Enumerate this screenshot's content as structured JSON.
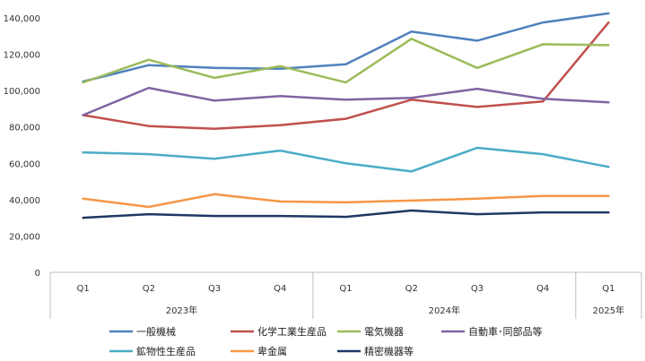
{
  "chart_data": {
    "type": "line",
    "title": "",
    "xlabel": "",
    "ylabel": "",
    "ylim": [
      0,
      140000
    ],
    "yticks": [
      "0",
      "20,000",
      "40,000",
      "60,000",
      "80,000",
      "100,000",
      "120,000",
      "140,000"
    ],
    "ytick_values": [
      0,
      20000,
      40000,
      60000,
      80000,
      100000,
      120000,
      140000
    ],
    "categories": [
      "Q1",
      "Q2",
      "Q3",
      "Q4",
      "Q1",
      "Q2",
      "Q3",
      "Q4",
      "Q1"
    ],
    "year_groups": [
      {
        "label": "2023年",
        "count": 4
      },
      {
        "label": "2024年",
        "count": 4
      },
      {
        "label": "2025年",
        "count": 1
      }
    ],
    "grid": false,
    "legend_position": "bottom",
    "series": [
      {
        "name": "一般機械",
        "color": "#4f81bd",
        "values": [
          105000,
          114000,
          112500,
          112000,
          114500,
          132500,
          127500,
          137500,
          142500
        ]
      },
      {
        "name": "化学工業生産品",
        "color": "#c0504d",
        "values": [
          86500,
          80500,
          79000,
          81000,
          84500,
          95000,
          91000,
          94000,
          137500
        ]
      },
      {
        "name": "電気機器",
        "color": "#9bbb59",
        "values": [
          104500,
          117000,
          107000,
          113500,
          104500,
          128500,
          112500,
          125500,
          125000
        ]
      },
      {
        "name": "自動車･同部品等",
        "color": "#8064a2",
        "values": [
          86500,
          101500,
          94500,
          97000,
          95000,
          96000,
          101000,
          95500,
          93500
        ]
      },
      {
        "name": "鉱物性生産品",
        "color": "#4bacc6",
        "values": [
          66000,
          65000,
          62500,
          67000,
          60000,
          55500,
          68500,
          65000,
          58000
        ]
      },
      {
        "name": "卑金属",
        "color": "#f79646",
        "values": [
          40500,
          36000,
          43000,
          39000,
          38500,
          39500,
          40500,
          42000,
          42000
        ]
      },
      {
        "name": "精密機器等",
        "color": "#1f3864",
        "values": [
          30000,
          32000,
          31000,
          31000,
          30500,
          34000,
          32000,
          33000,
          33000
        ]
      }
    ]
  }
}
